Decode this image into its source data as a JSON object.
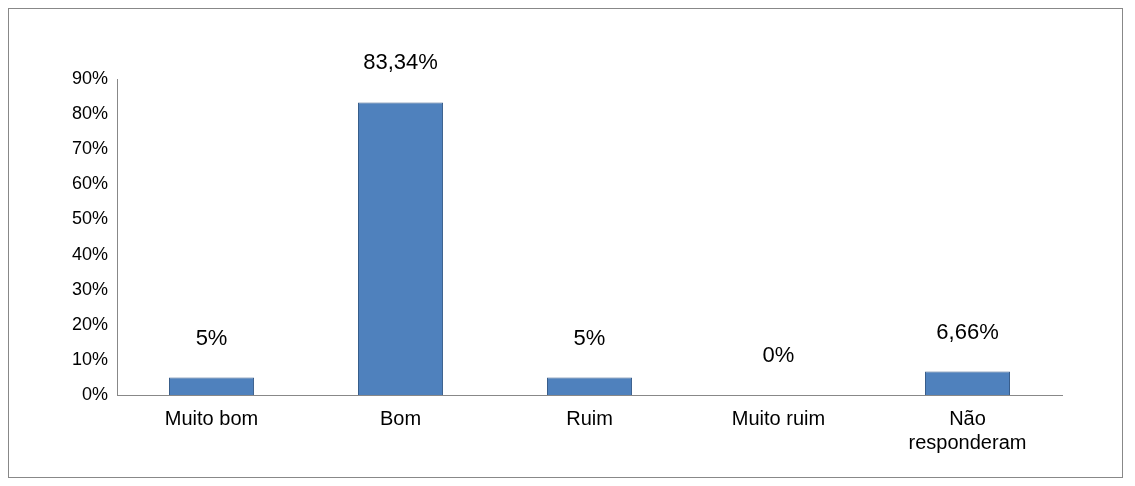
{
  "chart_data": {
    "type": "bar",
    "categories": [
      "Muito bom",
      "Bom",
      "Ruim",
      "Muito ruim",
      "Não responderam"
    ],
    "values": [
      5,
      83.34,
      5,
      0,
      6.66
    ],
    "color": "#4f81bd",
    "value_labels": [
      "5%",
      "83,34%",
      "5%",
      "0%",
      "6,66%"
    ],
    "ylim": [
      0,
      90
    ],
    "yticks": [
      {
        "value": 0,
        "label": "0%"
      },
      {
        "value": 10,
        "label": "10%"
      },
      {
        "value": 20,
        "label": "20%"
      },
      {
        "value": 30,
        "label": "30%"
      },
      {
        "value": 40,
        "label": "40%"
      },
      {
        "value": 50,
        "label": "50%"
      },
      {
        "value": 60,
        "label": "60%"
      },
      {
        "value": 70,
        "label": "70%"
      },
      {
        "value": 80,
        "label": "80%"
      },
      {
        "value": 90,
        "label": "90%"
      }
    ],
    "grid": false,
    "legend": false
  }
}
